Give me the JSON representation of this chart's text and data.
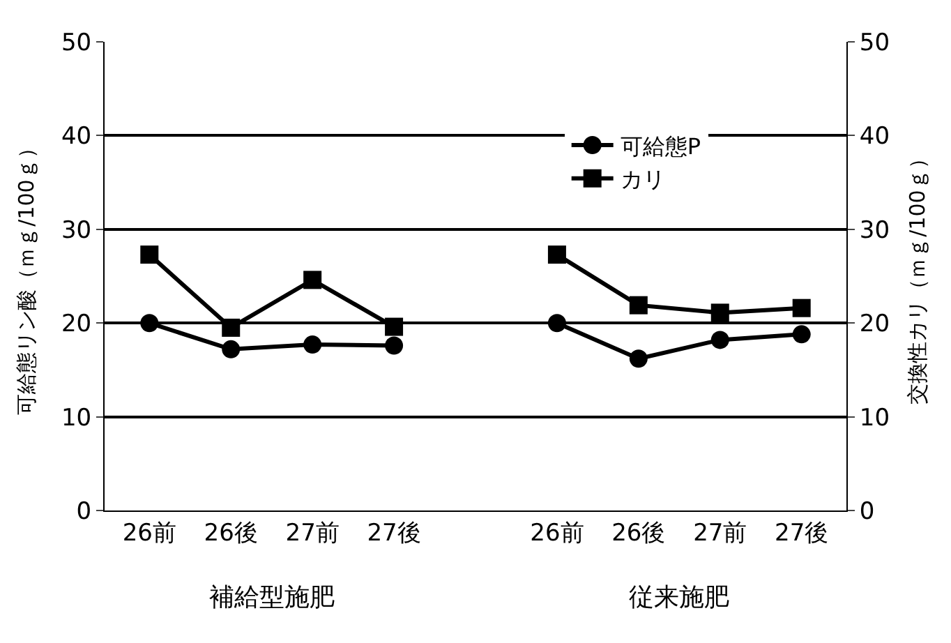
{
  "chart_data": {
    "type": "line",
    "ylabel": "可給態リン酸（ｍｇ/100ｇ）",
    "y2label": "交換性カリ（ｍｇ/100ｇ）",
    "categories": [
      "26前",
      "26後",
      "27前",
      "27後",
      null,
      "26前",
      "26後",
      "27前",
      "27後"
    ],
    "series": [
      {
        "name": "可給態P",
        "color": "#000000",
        "marker": "circle",
        "values": [
          20,
          17.2,
          17.7,
          17.6,
          null,
          20,
          16.2,
          18.2,
          18.8
        ]
      },
      {
        "name": "カリ",
        "color": "#000000",
        "marker": "square",
        "axis": "y2",
        "values": [
          27.3,
          19.5,
          24.6,
          19.6,
          null,
          27.3,
          21.9,
          21.1,
          21.6
        ]
      }
    ],
    "annotations": [
      "補給型施肥",
      "従来施肥"
    ],
    "ylim": [
      0,
      50
    ],
    "yticks": [
      0,
      10,
      20,
      30,
      40,
      50
    ],
    "y2lim": [
      0,
      50
    ],
    "y2ticks": [
      0,
      10,
      20,
      30,
      40,
      50
    ],
    "grid": "y",
    "legend": "top right",
    "line_style": "solid"
  }
}
